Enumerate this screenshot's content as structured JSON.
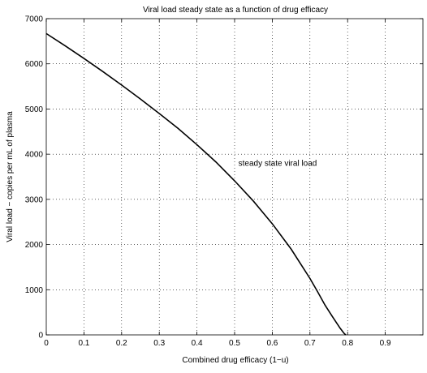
{
  "chart_data": {
    "type": "line",
    "title": "Viral load steady state as a function of drug efficacy",
    "xlabel": "Combined drug efficacy (1−u)",
    "ylabel": "Viral load − copies per mL of plasma",
    "xlim": [
      0,
      1
    ],
    "ylim": [
      0,
      7000
    ],
    "x_ticks": [
      0,
      0.1,
      0.2,
      0.3,
      0.4,
      0.5,
      0.6,
      0.7,
      0.8,
      0.9
    ],
    "x_tick_labels": [
      "0",
      "0.1",
      "0.2",
      "0.3",
      "0.4",
      "0.5",
      "0.6",
      "0.7",
      "0.8",
      "0.9"
    ],
    "y_ticks": [
      0,
      1000,
      2000,
      3000,
      4000,
      5000,
      6000,
      7000
    ],
    "y_tick_labels": [
      "0",
      "1000",
      "2000",
      "3000",
      "4000",
      "5000",
      "6000",
      "7000"
    ],
    "grid": true,
    "annotations": [
      {
        "text": "steady state viral load",
        "x": 0.51,
        "y": 3800
      }
    ],
    "series": [
      {
        "color": "#000000",
        "x": [
          0,
          0.05,
          0.1,
          0.15,
          0.2,
          0.25,
          0.3,
          0.35,
          0.4,
          0.45,
          0.5,
          0.55,
          0.6,
          0.65,
          0.7,
          0.72,
          0.74,
          0.76,
          0.78,
          0.79,
          0.795
        ],
        "y": [
          6670,
          6400,
          6120,
          5830,
          5530,
          5220,
          4900,
          4570,
          4210,
          3830,
          3410,
          2960,
          2460,
          1900,
          1250,
          960,
          660,
          400,
          150,
          40,
          0
        ]
      }
    ]
  }
}
